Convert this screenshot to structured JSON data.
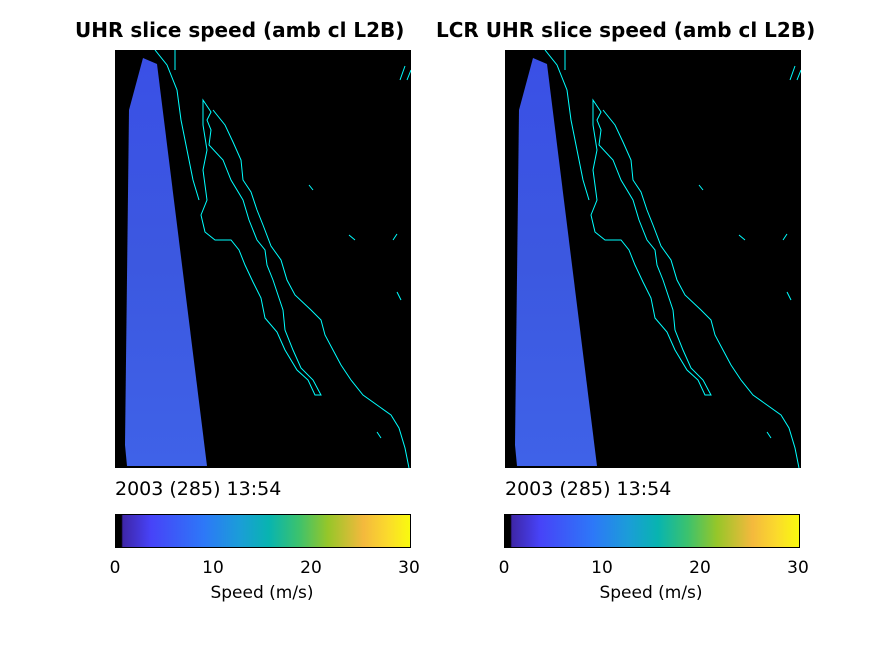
{
  "colors": {
    "swath": "#3b4fe0",
    "coastline": "#00ffff",
    "background": "#000000",
    "colormap": [
      "#000000",
      "#3e26a8",
      "#4743f8",
      "#2d78f8",
      "#1b9dd8",
      "#08b4b0",
      "#3bc26e",
      "#96c629",
      "#f4b93d",
      "#fbd92d",
      "#f9fb0e"
    ]
  },
  "panels": [
    {
      "title": "UHR slice speed (amb cl L2B)",
      "timestamp": "2003 (285) 13:54",
      "colorbar": {
        "label": "Speed (m/s)",
        "ticks": [
          "0",
          "10",
          "20",
          "30"
        ],
        "range": [
          0,
          30
        ]
      }
    },
    {
      "title": "LCR UHR slice speed (amb cl L2B)",
      "timestamp": "2003 (285) 13:54",
      "colorbar": {
        "label": "Speed (m/s)",
        "ticks": [
          "0",
          "10",
          "20",
          "30"
        ],
        "range": [
          0,
          30
        ]
      }
    }
  ],
  "chart_data": [
    {
      "type": "heatmap",
      "title": "UHR slice speed (amb cl L2B)",
      "colorbar_label": "Speed (m/s)",
      "colorbar_range": [
        0,
        30
      ],
      "colorbar_ticks": [
        0,
        10,
        20,
        30
      ],
      "annotation": "2003 (285) 13:54"
    },
    {
      "type": "heatmap",
      "title": "LCR UHR slice speed (amb cl L2B)",
      "colorbar_label": "Speed (m/s)",
      "colorbar_range": [
        0,
        30
      ],
      "colorbar_ticks": [
        0,
        10,
        20,
        30
      ],
      "annotation": "2003 (285) 13:54"
    }
  ]
}
